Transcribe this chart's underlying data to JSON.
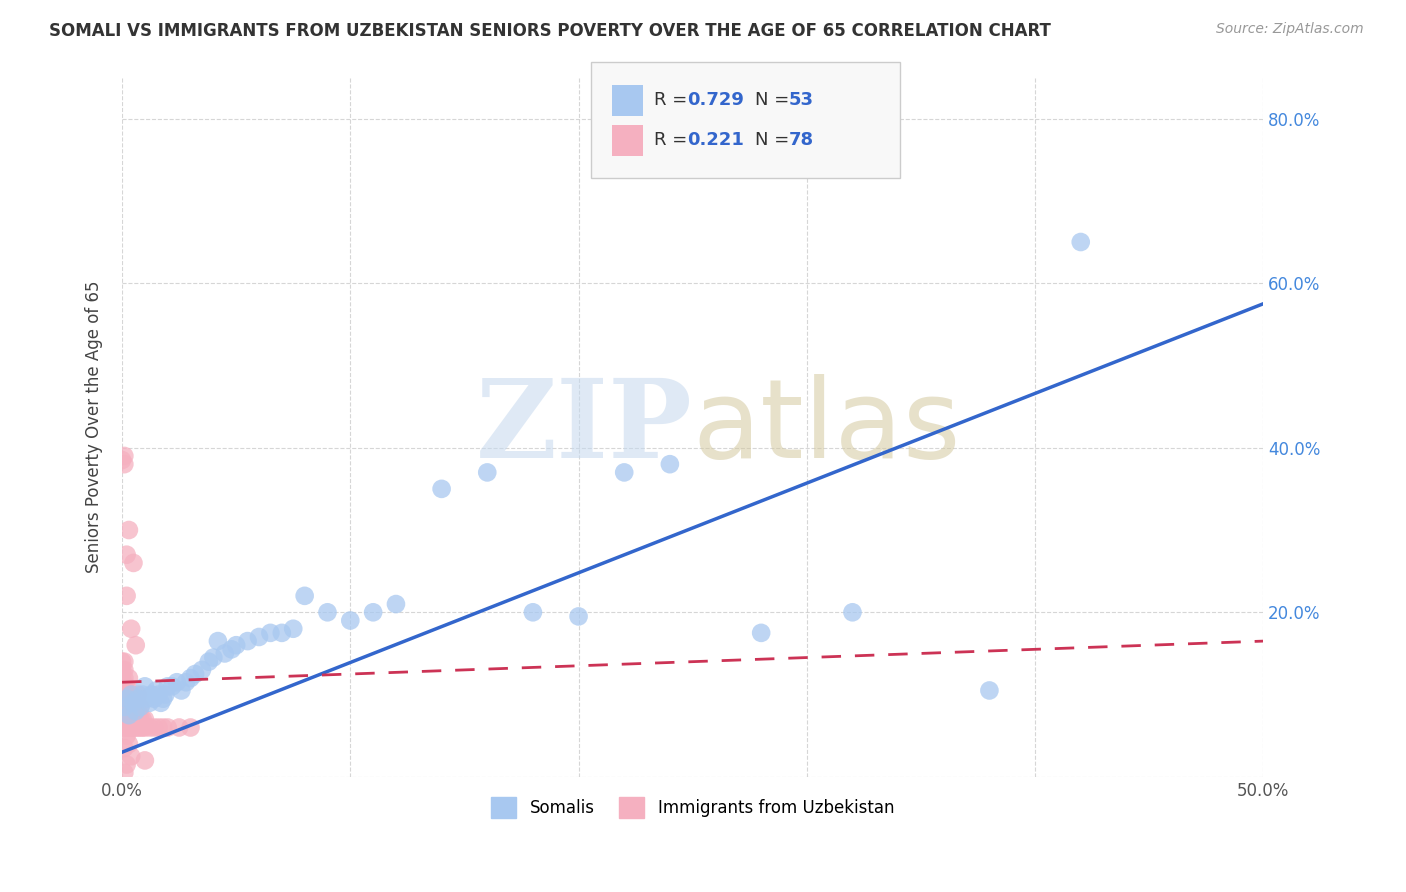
{
  "title": "SOMALI VS IMMIGRANTS FROM UZBEKISTAN SENIORS POVERTY OVER THE AGE OF 65 CORRELATION CHART",
  "source": "Source: ZipAtlas.com",
  "ylabel": "Seniors Poverty Over the Age of 65",
  "xlim": [
    0.0,
    0.5
  ],
  "ylim": [
    0.0,
    0.85
  ],
  "xticks": [
    0.0,
    0.1,
    0.2,
    0.3,
    0.4,
    0.5
  ],
  "yticks_left": [
    0.0,
    0.2,
    0.4,
    0.6,
    0.8
  ],
  "yticks_right": [
    0.2,
    0.4,
    0.6,
    0.8
  ],
  "xticklabels": [
    "0.0%",
    "",
    "",
    "",
    "",
    "50.0%"
  ],
  "yticklabels_left": [
    "",
    "",
    "",
    "",
    ""
  ],
  "yticklabels_right": [
    "20.0%",
    "40.0%",
    "60.0%",
    "80.0%"
  ],
  "somali_color": "#a8c8f0",
  "uzbek_color": "#f5b0c0",
  "somali_line_color": "#3366cc",
  "uzbek_line_color": "#cc3355",
  "R_somali": 0.729,
  "N_somali": 53,
  "R_uzbek": 0.221,
  "N_uzbek": 78,
  "somali_line_x0": 0.0,
  "somali_line_y0": 0.03,
  "somali_line_x1": 0.5,
  "somali_line_y1": 0.575,
  "uzbek_line_x0": 0.0,
  "uzbek_line_y0": 0.115,
  "uzbek_line_x1": 0.5,
  "uzbek_line_y1": 0.165,
  "somali_scatter_x": [
    0.001,
    0.002,
    0.003,
    0.004,
    0.005,
    0.006,
    0.007,
    0.008,
    0.009,
    0.01,
    0.011,
    0.012,
    0.013,
    0.014,
    0.015,
    0.016,
    0.017,
    0.018,
    0.019,
    0.02,
    0.022,
    0.024,
    0.026,
    0.028,
    0.03,
    0.032,
    0.035,
    0.038,
    0.04,
    0.042,
    0.045,
    0.048,
    0.05,
    0.055,
    0.06,
    0.065,
    0.07,
    0.075,
    0.08,
    0.09,
    0.1,
    0.11,
    0.12,
    0.14,
    0.16,
    0.18,
    0.2,
    0.22,
    0.24,
    0.28,
    0.32,
    0.38,
    0.42
  ],
  "somali_scatter_y": [
    0.085,
    0.095,
    0.075,
    0.1,
    0.09,
    0.08,
    0.095,
    0.085,
    0.1,
    0.11,
    0.095,
    0.09,
    0.1,
    0.095,
    0.105,
    0.1,
    0.09,
    0.095,
    0.1,
    0.11,
    0.11,
    0.115,
    0.105,
    0.115,
    0.12,
    0.125,
    0.13,
    0.14,
    0.145,
    0.165,
    0.15,
    0.155,
    0.16,
    0.165,
    0.17,
    0.175,
    0.175,
    0.18,
    0.22,
    0.2,
    0.19,
    0.2,
    0.21,
    0.35,
    0.37,
    0.2,
    0.195,
    0.37,
    0.38,
    0.175,
    0.2,
    0.105,
    0.65
  ],
  "uzbek_scatter_x": [
    0.0,
    0.0,
    0.0,
    0.0,
    0.0,
    0.0,
    0.0,
    0.0,
    0.0,
    0.0,
    0.001,
    0.001,
    0.001,
    0.001,
    0.001,
    0.001,
    0.001,
    0.001,
    0.001,
    0.002,
    0.002,
    0.002,
    0.002,
    0.002,
    0.002,
    0.002,
    0.003,
    0.003,
    0.003,
    0.003,
    0.003,
    0.004,
    0.004,
    0.004,
    0.004,
    0.005,
    0.005,
    0.005,
    0.005,
    0.006,
    0.006,
    0.006,
    0.007,
    0.007,
    0.007,
    0.008,
    0.008,
    0.009,
    0.009,
    0.01,
    0.01,
    0.012,
    0.014,
    0.016,
    0.018,
    0.02,
    0.025,
    0.03,
    0.001,
    0.003,
    0.005,
    0.002,
    0.004,
    0.006,
    0.001,
    0.003,
    0.007,
    0.002,
    0.008,
    0.004,
    0.006,
    0.002,
    0.001,
    0.003,
    0.01,
    0.002,
    0.001,
    0.004
  ],
  "uzbek_scatter_y": [
    0.06,
    0.07,
    0.08,
    0.09,
    0.1,
    0.11,
    0.12,
    0.13,
    0.14,
    0.385,
    0.06,
    0.07,
    0.08,
    0.09,
    0.1,
    0.11,
    0.12,
    0.13,
    0.39,
    0.06,
    0.07,
    0.08,
    0.09,
    0.1,
    0.11,
    0.27,
    0.06,
    0.07,
    0.08,
    0.09,
    0.1,
    0.06,
    0.07,
    0.08,
    0.09,
    0.06,
    0.07,
    0.08,
    0.09,
    0.06,
    0.07,
    0.08,
    0.06,
    0.07,
    0.08,
    0.06,
    0.07,
    0.06,
    0.07,
    0.06,
    0.07,
    0.06,
    0.06,
    0.06,
    0.06,
    0.06,
    0.06,
    0.06,
    0.38,
    0.3,
    0.26,
    0.22,
    0.18,
    0.16,
    0.14,
    0.12,
    0.1,
    0.095,
    0.085,
    0.075,
    0.065,
    0.05,
    0.035,
    0.04,
    0.02,
    0.015,
    0.005,
    0.025
  ]
}
